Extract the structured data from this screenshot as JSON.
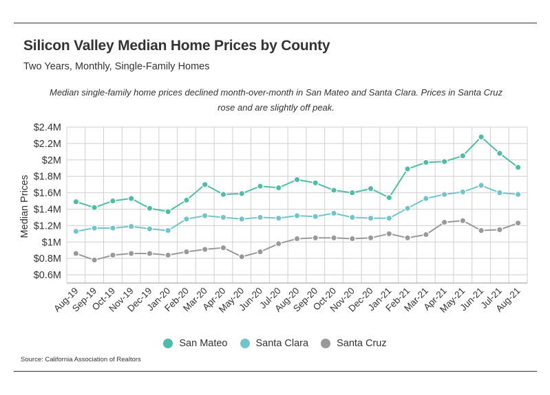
{
  "header": {
    "title": "Silicon Valley Median Home Prices by County",
    "subtitle": "Two Years, Monthly, Single-Family Homes",
    "note": "Median single-family home prices declined month-over-month in San Mateo and Santa Clara. Prices in Santa Cruz rose and are slightly off peak."
  },
  "footer": {
    "source": "Source:  California Association of Realtors"
  },
  "chart_data": {
    "type": "line",
    "title": "Silicon Valley Median Home Prices by County",
    "subtitle": "Two Years, Monthly, Single-Family Homes",
    "xlabel": "",
    "ylabel": "Median Prices",
    "ylim": [
      0.5,
      2.4
    ],
    "yticks": [
      0.6,
      0.8,
      1.0,
      1.2,
      1.4,
      1.6,
      1.8,
      2.0,
      2.2,
      2.4
    ],
    "ytick_labels": [
      "$0.6M",
      "$0.8M",
      "$1M",
      "$1.2M",
      "$1.4M",
      "$1.6M",
      "$1.8M",
      "$2M",
      "$2.2M",
      "$2.4M"
    ],
    "grid": true,
    "legend_position": "bottom-center",
    "categories": [
      "Aug-19",
      "Sep-19",
      "Oct-19",
      "Nov-19",
      "Dec-19",
      "Jan-20",
      "Feb-20",
      "Mar-20",
      "Apr-20",
      "May-20",
      "Jun-20",
      "Jul-20",
      "Aug-20",
      "Sep-20",
      "Oct-20",
      "Nov-20",
      "Dec-20",
      "Jan-21",
      "Feb-21",
      "Mar-21",
      "Apr-21",
      "May-21",
      "Jun-21",
      "Jul-21",
      "Aug-21"
    ],
    "series": [
      {
        "name": "San Mateo",
        "color": "#4dbda7",
        "values": [
          1.49,
          1.42,
          1.5,
          1.53,
          1.41,
          1.37,
          1.51,
          1.7,
          1.58,
          1.59,
          1.68,
          1.66,
          1.76,
          1.72,
          1.63,
          1.6,
          1.65,
          1.54,
          1.89,
          1.97,
          1.98,
          2.05,
          2.28,
          2.08,
          1.91
        ]
      },
      {
        "name": "Santa Clara",
        "color": "#6ec6cc",
        "values": [
          1.13,
          1.17,
          1.17,
          1.19,
          1.16,
          1.14,
          1.28,
          1.32,
          1.3,
          1.28,
          1.3,
          1.29,
          1.32,
          1.31,
          1.35,
          1.3,
          1.29,
          1.29,
          1.41,
          1.53,
          1.58,
          1.61,
          1.69,
          1.6,
          1.58
        ]
      },
      {
        "name": "Santa Cruz",
        "color": "#999999",
        "values": [
          0.86,
          0.78,
          0.84,
          0.86,
          0.86,
          0.84,
          0.88,
          0.91,
          0.93,
          0.82,
          0.88,
          0.98,
          1.04,
          1.05,
          1.05,
          1.04,
          1.05,
          1.1,
          1.05,
          1.09,
          1.24,
          1.26,
          1.14,
          1.15,
          1.23
        ]
      }
    ]
  }
}
